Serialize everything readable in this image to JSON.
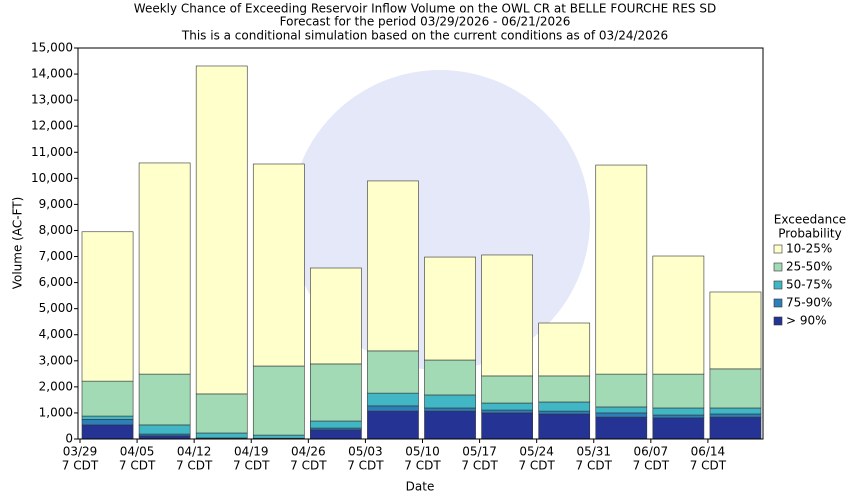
{
  "chart_data": {
    "type": "stacked_bar",
    "title": "Weekly Chance of Exceeding Reservoir Inflow Volume on the OWL CR at BELLE FOURCHE RES SD",
    "subtitle": [
      "Forecast for the period 03/29/2026 - 06/21/2026",
      "This is a conditional simulation based on the current conditions as of 03/24/2026"
    ],
    "x_label": "Date",
    "y_label": "Volume (AC-FT)",
    "legend_title": [
      "Exceedance",
      "Probability"
    ],
    "legend_position": "right",
    "grid": false,
    "categories": [
      [
        "03/29",
        "7 CDT"
      ],
      [
        "04/05",
        "7 CDT"
      ],
      [
        "04/12",
        "7 CDT"
      ],
      [
        "04/19",
        "7 CDT"
      ],
      [
        "04/26",
        "7 CDT"
      ],
      [
        "05/03",
        "7 CDT"
      ],
      [
        "05/10",
        "7 CDT"
      ],
      [
        "05/17",
        "7 CDT"
      ],
      [
        "05/24",
        "7 CDT"
      ],
      [
        "05/31",
        "7 CDT"
      ],
      [
        "06/07",
        "7 CDT"
      ],
      [
        "06/14",
        "7 CDT"
      ]
    ],
    "series": [
      {
        "name": "> 90%",
        "color": "#253494",
        "values": [
          540,
          120,
          20,
          10,
          350,
          1070,
          1070,
          1000,
          960,
          840,
          810,
          840
        ]
      },
      {
        "name": "75-90%",
        "color": "#2c7fb8",
        "values": [
          210,
          70,
          20,
          20,
          70,
          200,
          120,
          110,
          110,
          160,
          110,
          120
        ]
      },
      {
        "name": "50-75%",
        "color": "#41b6c4",
        "values": [
          130,
          350,
          190,
          120,
          270,
          490,
          500,
          270,
          350,
          230,
          270,
          230
        ]
      },
      {
        "name": "25-50%",
        "color": "#a1dab4",
        "values": [
          1340,
          1950,
          1500,
          2650,
          2190,
          1620,
          1340,
          1040,
          1000,
          1260,
          1300,
          1500
        ]
      },
      {
        "name": "10-25%",
        "color": "#ffffcc",
        "values": [
          5730,
          8100,
          12580,
          7750,
          3680,
          6520,
          3950,
          4640,
          2030,
          8020,
          4530,
          2950
        ]
      }
    ],
    "ylim": [
      0,
      15000
    ],
    "yticks": [
      0,
      {
        "value": 1000,
        "label": "1,000"
      },
      {
        "value": 2000,
        "label": "2,000"
      },
      {
        "value": 3000,
        "label": "3,000"
      },
      {
        "value": 4000,
        "label": "4,000"
      },
      {
        "value": 5000,
        "label": "5,000"
      },
      {
        "value": 6000,
        "label": "6,000"
      },
      {
        "value": 7000,
        "label": "7,000"
      },
      {
        "value": 8000,
        "label": "8,000"
      },
      {
        "value": 9000,
        "label": "9,000"
      },
      {
        "value": 10000,
        "label": "10,000"
      },
      {
        "value": 11000,
        "label": "11,000"
      },
      {
        "value": 12000,
        "label": "12,000"
      },
      {
        "value": 13000,
        "label": "13,000"
      },
      {
        "value": 14000,
        "label": "14,000"
      },
      {
        "value": 15000,
        "label": "15,000"
      }
    ]
  }
}
